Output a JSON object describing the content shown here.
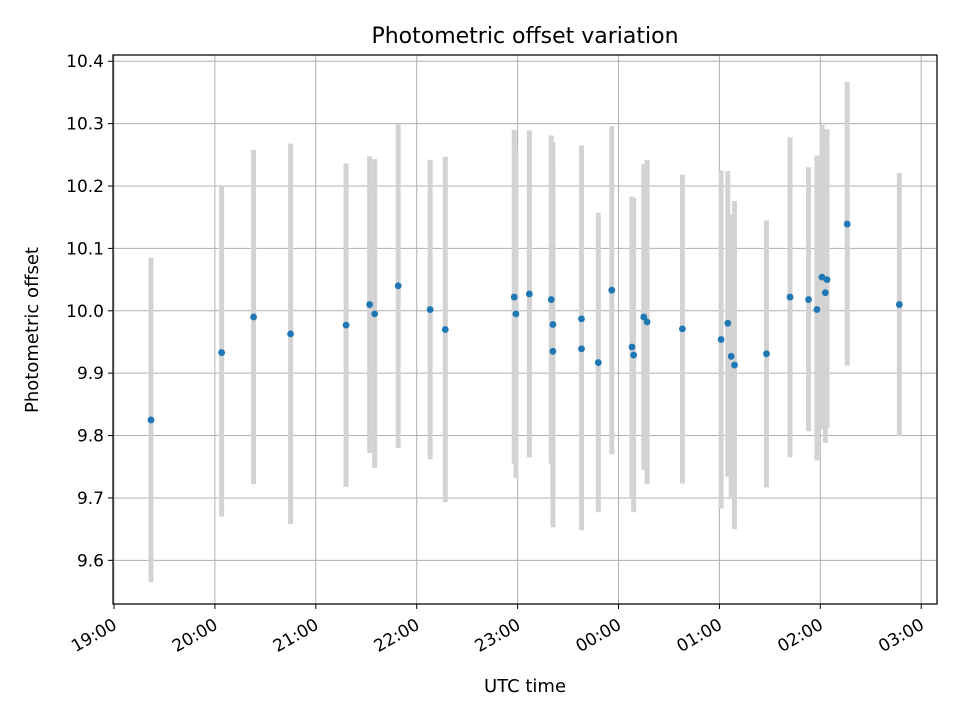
{
  "chart_data": {
    "type": "scatter",
    "title": "Photometric offset variation",
    "xlabel": "UTC time",
    "ylabel": "Photometric offset",
    "x_tick_labels": [
      "19:00",
      "20:00",
      "21:00",
      "22:00",
      "23:00",
      "00:00",
      "01:00",
      "02:00",
      "03:00"
    ],
    "y_tick_labels": [
      "9.6",
      "9.7",
      "9.8",
      "9.9",
      "10.0",
      "10.1",
      "10.2",
      "10.3",
      "10.4"
    ],
    "ylim": [
      9.53,
      10.41
    ],
    "grid": true,
    "marker_color": "#1f77b4",
    "errorbar_color": "#d3d3d3",
    "points": [
      {
        "t": "19:22",
        "y": 9.825,
        "lo": 9.565,
        "hi": 10.085
      },
      {
        "t": "20:04",
        "y": 9.933,
        "lo": 9.67,
        "hi": 10.2
      },
      {
        "t": "20:23",
        "y": 9.99,
        "lo": 9.722,
        "hi": 10.258
      },
      {
        "t": "20:45",
        "y": 9.963,
        "lo": 9.658,
        "hi": 10.268
      },
      {
        "t": "21:18",
        "y": 9.977,
        "lo": 9.718,
        "hi": 10.236
      },
      {
        "t": "21:32",
        "y": 10.01,
        "lo": 9.772,
        "hi": 10.248
      },
      {
        "t": "21:35",
        "y": 9.995,
        "lo": 9.748,
        "hi": 10.243
      },
      {
        "t": "21:49",
        "y": 10.04,
        "lo": 9.78,
        "hi": 10.3
      },
      {
        "t": "22:08",
        "y": 10.002,
        "lo": 9.762,
        "hi": 10.242
      },
      {
        "t": "22:17",
        "y": 9.97,
        "lo": 9.693,
        "hi": 10.247
      },
      {
        "t": "22:58",
        "y": 10.022,
        "lo": 9.754,
        "hi": 10.29
      },
      {
        "t": "22:59",
        "y": 9.995,
        "lo": 9.732,
        "hi": 10.258
      },
      {
        "t": "23:07",
        "y": 10.027,
        "lo": 9.765,
        "hi": 10.289
      },
      {
        "t": "23:20",
        "y": 10.018,
        "lo": 9.755,
        "hi": 10.281
      },
      {
        "t": "23:21",
        "y": 9.978,
        "lo": 9.7,
        "hi": 10.27
      },
      {
        "t": "23:21",
        "y": 9.935,
        "lo": 9.653,
        "hi": 10.217
      },
      {
        "t": "23:38",
        "y": 9.987,
        "lo": 9.74,
        "hi": 10.265
      },
      {
        "t": "23:38",
        "y": 9.939,
        "lo": 9.648,
        "hi": 10.23
      },
      {
        "t": "23:48",
        "y": 9.917,
        "lo": 9.677,
        "hi": 10.157
      },
      {
        "t": "23:56",
        "y": 10.033,
        "lo": 9.77,
        "hi": 10.296
      },
      {
        "t": "00:08",
        "y": 9.942,
        "lo": 9.7,
        "hi": 10.183
      },
      {
        "t": "00:09",
        "y": 9.929,
        "lo": 9.677,
        "hi": 10.181
      },
      {
        "t": "00:15",
        "y": 9.99,
        "lo": 9.745,
        "hi": 10.235
      },
      {
        "t": "00:17",
        "y": 9.982,
        "lo": 9.722,
        "hi": 10.242
      },
      {
        "t": "00:38",
        "y": 9.971,
        "lo": 9.723,
        "hi": 10.218
      },
      {
        "t": "01:01",
        "y": 9.954,
        "lo": 9.683,
        "hi": 10.225
      },
      {
        "t": "01:05",
        "y": 9.98,
        "lo": 9.734,
        "hi": 10.224
      },
      {
        "t": "01:07",
        "y": 9.927,
        "lo": 9.7,
        "hi": 10.154
      },
      {
        "t": "01:09",
        "y": 9.913,
        "lo": 9.65,
        "hi": 10.176
      },
      {
        "t": "01:28",
        "y": 9.931,
        "lo": 9.717,
        "hi": 10.145
      },
      {
        "t": "01:42",
        "y": 10.022,
        "lo": 9.765,
        "hi": 10.278
      },
      {
        "t": "01:53",
        "y": 10.018,
        "lo": 9.807,
        "hi": 10.23
      },
      {
        "t": "01:58",
        "y": 10.002,
        "lo": 9.76,
        "hi": 10.249
      },
      {
        "t": "02:01",
        "y": 10.054,
        "lo": 9.81,
        "hi": 10.298
      },
      {
        "t": "02:04",
        "y": 10.05,
        "lo": 9.812,
        "hi": 10.291
      },
      {
        "t": "02:03",
        "y": 10.029,
        "lo": 9.788,
        "hi": 10.27
      },
      {
        "t": "02:16",
        "y": 10.139,
        "lo": 9.912,
        "hi": 10.367
      },
      {
        "t": "02:47",
        "y": 10.01,
        "lo": 9.799,
        "hi": 10.221
      }
    ]
  }
}
